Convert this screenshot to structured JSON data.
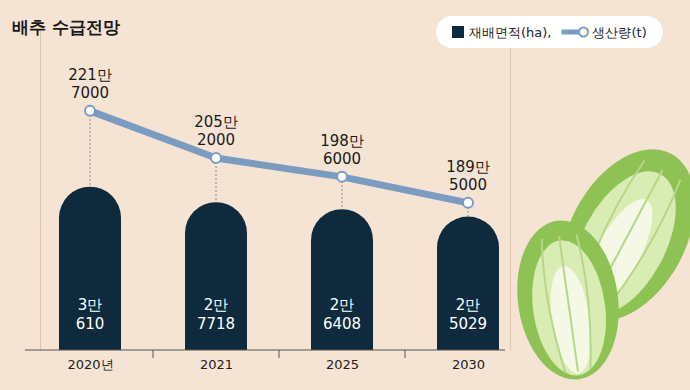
{
  "chart_data": {
    "type": "bar",
    "title": "배추 수급전망",
    "categories": [
      "2020년",
      "2021",
      "2025",
      "2030"
    ],
    "series": [
      {
        "name": "재배면적(ha),",
        "type": "bar",
        "color": "#0f2a3d",
        "values": [
          30610,
          27718,
          26408,
          25029
        ],
        "value_labels": [
          "3만\n610",
          "2만\n7718",
          "2만\n6408",
          "2만\n5029"
        ]
      },
      {
        "name": "생산량(t)",
        "type": "line",
        "axis": "y2",
        "color": "#7b9cc0",
        "marker": "circle",
        "values": [
          2217000,
          2052000,
          1986000,
          1895000
        ],
        "value_labels": [
          "221만\n7000",
          "205만\n2000",
          "198만\n6000",
          "189만\n5000"
        ]
      }
    ],
    "ylim": [
      0,
      60000
    ],
    "y2lim": [
      1380000,
      2500000
    ],
    "data_labels": true,
    "tick_labels": "x",
    "legend": "upper right"
  }
}
